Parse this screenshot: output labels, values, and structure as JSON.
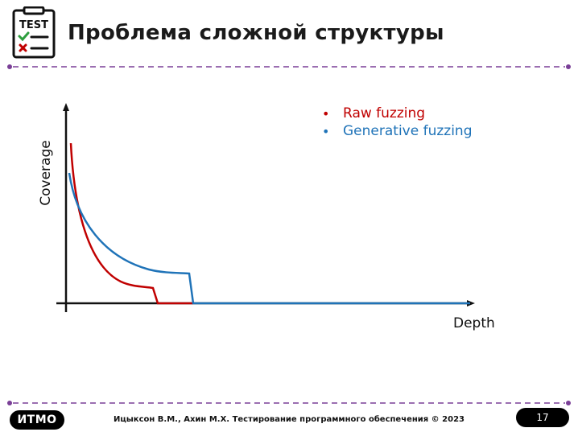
{
  "slide": {
    "icon_label": "TEST",
    "title": "Проблема сложной структуры"
  },
  "colors": {
    "raw": "#c00000",
    "generative": "#1f73b8",
    "divider": "#7a3f97"
  },
  "diagram": {
    "xlabel": "Depth",
    "ylabel": "Coverage",
    "legend": [
      "Raw fuzzing",
      "Generative fuzzing"
    ]
  },
  "footer": {
    "logo": "ИTMO",
    "text": "Ицыксон В.М., Ахин М.Х. Тестирование программного обеспечения © 2023",
    "page": "17"
  }
}
